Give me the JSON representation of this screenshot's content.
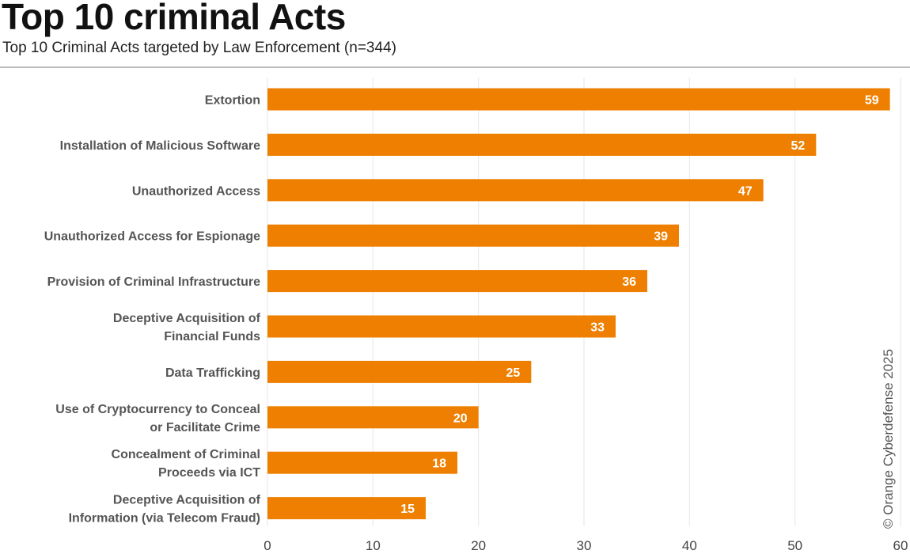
{
  "chart_data": {
    "type": "bar",
    "orientation": "horizontal",
    "title": "Top 10 criminal Acts",
    "subtitle": "Top 10 Criminal Acts targeted by Law Enforcement (n=344)",
    "categories": [
      [
        "Extortion"
      ],
      [
        "Installation of Malicious Software"
      ],
      [
        "Unauthorized Access"
      ],
      [
        "Unauthorized Access for Espionage"
      ],
      [
        "Provision of Criminal Infrastructure"
      ],
      [
        "Deceptive Acquisition of",
        "Financial Funds"
      ],
      [
        "Data Trafficking"
      ],
      [
        "Use of Cryptocurrency to Conceal",
        "or Facilitate Crime"
      ],
      [
        "Concealment of Criminal",
        "Proceeds via ICT"
      ],
      [
        "Deceptive Acquisition of",
        "Information (via Telecom Fraud)"
      ]
    ],
    "values": [
      59,
      52,
      47,
      39,
      36,
      33,
      25,
      20,
      18,
      15
    ],
    "xlim": [
      0,
      60
    ],
    "xticks": [
      0,
      10,
      20,
      30,
      40,
      50,
      60
    ],
    "grid": true,
    "bar_color": "#ee7f00",
    "credit": "© Orange Cyberdefense 2025"
  }
}
